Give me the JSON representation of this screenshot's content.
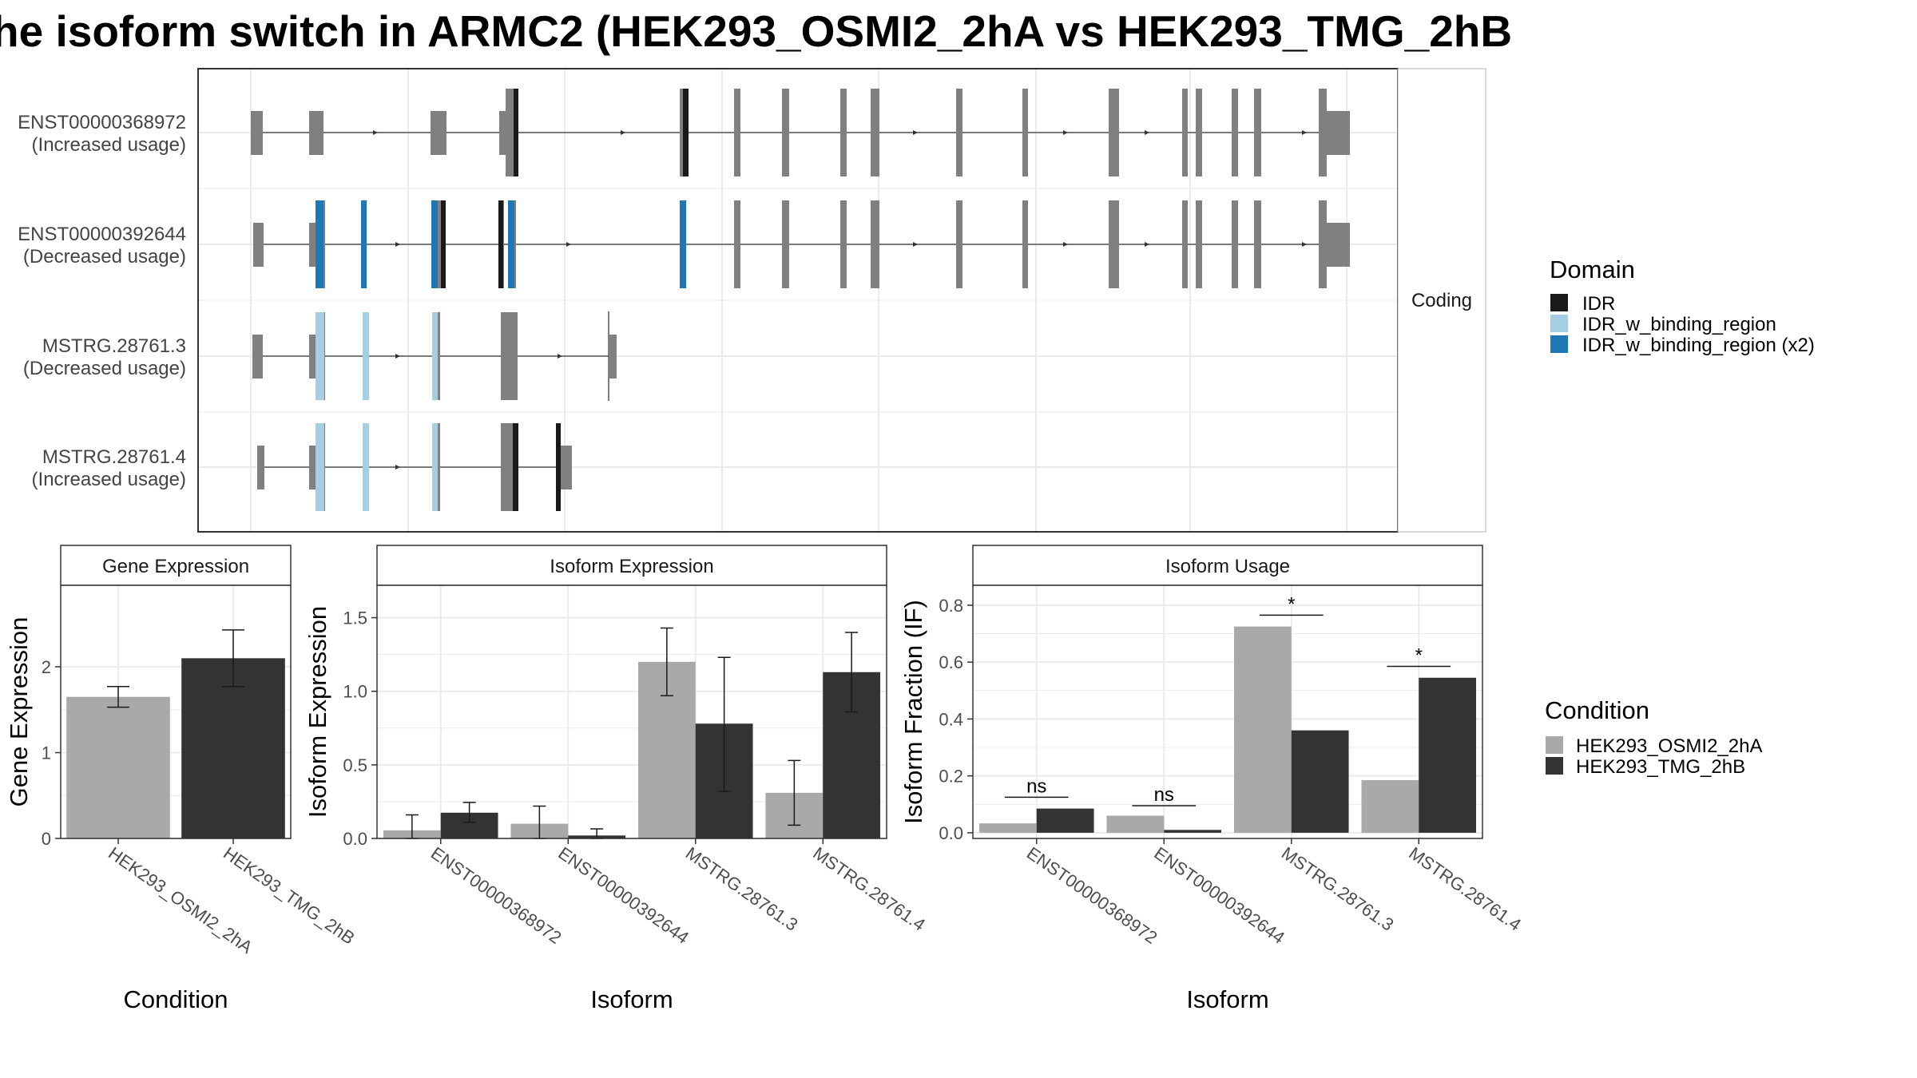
{
  "title": "he isoform switch in ARMC2 (HEK293_OSMI2_2hA vs HEK293_TMG_2hB",
  "structure_panel": {
    "strip_label": "Coding",
    "isoforms": [
      {
        "id": "ENST00000368972",
        "note": "(Increased usage)"
      },
      {
        "id": "ENST00000392644",
        "note": "(Decreased usage)"
      },
      {
        "id": "MSTRG.28761.3",
        "note": "(Decreased usage)"
      },
      {
        "id": "MSTRG.28761.4",
        "note": "(Increased usage)"
      }
    ]
  },
  "legends": {
    "domain": {
      "title": "Domain",
      "items": [
        {
          "label": "IDR",
          "color": "#1a1a1a"
        },
        {
          "label": "IDR_w_binding_region",
          "color": "#a6cee3"
        },
        {
          "label": "IDR_w_binding_region (x2)",
          "color": "#1f78b4"
        }
      ]
    },
    "condition": {
      "title": "Condition",
      "items": [
        {
          "label": "HEK293_OSMI2_2hA",
          "color": "#a9a9a9"
        },
        {
          "label": "HEK293_TMG_2hB",
          "color": "#333333"
        }
      ]
    }
  },
  "chart_data": [
    {
      "type": "bar",
      "title": "Gene Expression",
      "xlabel": "Condition",
      "ylabel": "Gene Expression",
      "categories": [
        "HEK293_OSMI2_2hA",
        "HEK293_TMG_2hB"
      ],
      "values": [
        1.65,
        2.1
      ],
      "error_low": [
        1.53,
        1.77
      ],
      "error_high": [
        1.77,
        2.43
      ],
      "ylim": [
        0,
        2.95
      ],
      "yticks": [
        0,
        1,
        2
      ],
      "colors": [
        "#a9a9a9",
        "#333333"
      ]
    },
    {
      "type": "bar",
      "title": "Isoform Expression",
      "xlabel": "Isoform",
      "ylabel": "Isoform Expression",
      "categories": [
        "ENST00000368972",
        "ENST00000392644",
        "MSTRG.28761.3",
        "MSTRG.28761.4"
      ],
      "series": [
        {
          "name": "HEK293_OSMI2_2hA",
          "values": [
            0.055,
            0.1,
            1.2,
            0.31
          ],
          "error_low": [
            0.0,
            0.0,
            0.97,
            0.09
          ],
          "error_high": [
            0.16,
            0.22,
            1.43,
            0.53
          ]
        },
        {
          "name": "HEK293_TMG_2hB",
          "values": [
            0.175,
            0.02,
            0.78,
            1.13
          ],
          "error_low": [
            0.11,
            0.0,
            0.32,
            0.86
          ],
          "error_high": [
            0.245,
            0.065,
            1.23,
            1.4
          ]
        }
      ],
      "ylim": [
        0,
        1.72
      ],
      "yticks": [
        0.0,
        0.5,
        1.0,
        1.5
      ],
      "ytick_labels": [
        "0.0",
        "0.5",
        "1.0",
        "1.5"
      ]
    },
    {
      "type": "bar",
      "title": "Isoform Usage",
      "xlabel": "Isoform",
      "ylabel": "Isoform Fraction (IF)",
      "categories": [
        "ENST00000368972",
        "ENST00000392644",
        "MSTRG.28761.3",
        "MSTRG.28761.4"
      ],
      "series": [
        {
          "name": "HEK293_OSMI2_2hA",
          "values": [
            0.033,
            0.06,
            0.725,
            0.185
          ]
        },
        {
          "name": "HEK293_TMG_2hB",
          "values": [
            0.085,
            0.01,
            0.36,
            0.545
          ]
        }
      ],
      "significance": [
        "ns",
        "ns",
        "*",
        "*"
      ],
      "significance_level": [
        0.125,
        0.095,
        0.765,
        0.585
      ],
      "ylim": [
        -0.02,
        0.87
      ],
      "yticks": [
        0.0,
        0.2,
        0.4,
        0.6,
        0.8
      ],
      "ytick_labels": [
        "0.0",
        "0.2",
        "0.4",
        "0.6",
        "0.8"
      ]
    }
  ]
}
